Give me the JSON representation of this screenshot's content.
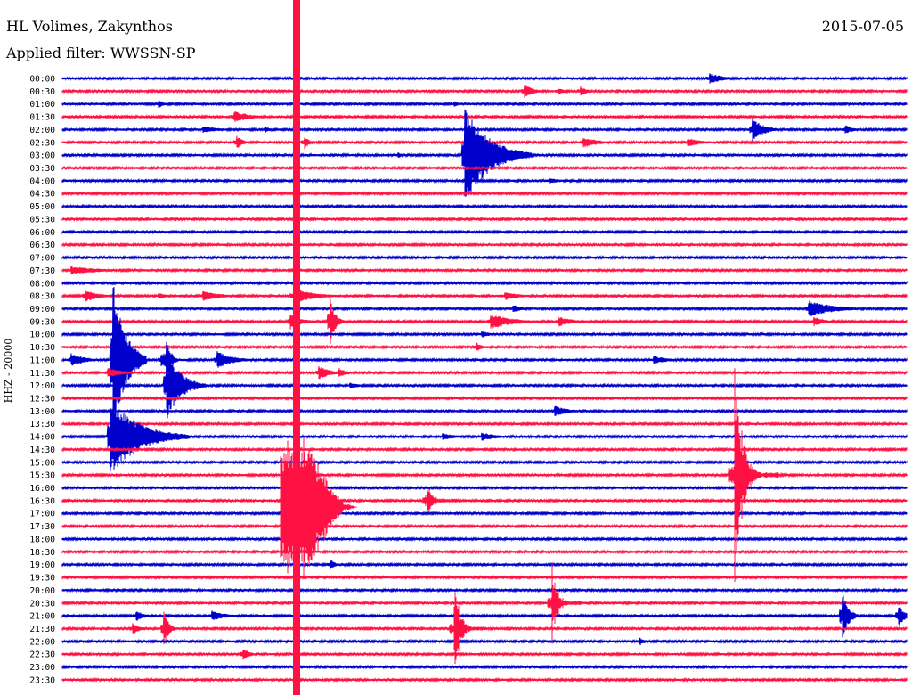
{
  "header": {
    "station": "HL Volimes, Zakynthos",
    "date": "2015-07-05",
    "filter": "Applied filter: WWSSN-SP"
  },
  "colors": {
    "trace_a": "#0000cc",
    "trace_b": "#ff1144",
    "background": "#ffffff",
    "text": "#000000"
  },
  "chart_data": {
    "type": "line",
    "ylabel": "HHZ - 20000",
    "row_labels": [
      "00:00",
      "00:30",
      "01:00",
      "01:30",
      "02:00",
      "02:30",
      "03:00",
      "03:30",
      "04:00",
      "04:30",
      "05:00",
      "05:30",
      "06:00",
      "06:30",
      "07:00",
      "07:30",
      "08:00",
      "08:30",
      "09:00",
      "09:30",
      "10:00",
      "10:30",
      "11:00",
      "11:30",
      "12:00",
      "12:30",
      "13:00",
      "13:30",
      "14:00",
      "14:30",
      "15:00",
      "15:30",
      "16:00",
      "16:30",
      "17:00",
      "17:30",
      "18:00",
      "18:30",
      "19:00",
      "19:30",
      "20:00",
      "20:30",
      "21:00",
      "21:30",
      "22:00",
      "22:30",
      "23:00",
      "23:30"
    ],
    "row_span_minutes": 30,
    "grid": false,
    "legend": "none",
    "series": [
      {
        "values": [
          {
            "row": 0,
            "minute": 23,
            "amp": 6,
            "dur": 1.5
          },
          {
            "row": 1,
            "minute": 16.4,
            "amp": 10,
            "dur": 0.8
          },
          {
            "row": 1,
            "minute": 17.6,
            "amp": 5,
            "dur": 0.6
          },
          {
            "row": 1,
            "minute": 18.4,
            "amp": 6,
            "dur": 0.7
          },
          {
            "row": 2,
            "minute": 3.4,
            "amp": 5,
            "dur": 0.6
          },
          {
            "row": 2,
            "minute": 13.9,
            "amp": 4,
            "dur": 0.5
          },
          {
            "row": 3,
            "minute": 6.1,
            "amp": 7,
            "dur": 1.6
          },
          {
            "row": 4,
            "minute": 5,
            "amp": 4,
            "dur": 1.8
          },
          {
            "row": 4,
            "minute": 7.2,
            "amp": 4,
            "dur": 0.6
          },
          {
            "row": 4,
            "minute": 24.5,
            "amp": 14,
            "dur": 1.2
          },
          {
            "row": 4,
            "minute": 27.8,
            "amp": 6,
            "dur": 0.8
          },
          {
            "row": 5,
            "minute": 6.2,
            "amp": 8,
            "dur": 0.6
          },
          {
            "row": 5,
            "minute": 8.6,
            "amp": 8,
            "dur": 0.5
          },
          {
            "row": 5,
            "minute": 18.5,
            "amp": 6,
            "dur": 1.6
          },
          {
            "row": 5,
            "minute": 22.2,
            "amp": 5,
            "dur": 1.6
          },
          {
            "row": 6,
            "minute": 11.9,
            "amp": 4,
            "dur": 0.5
          },
          {
            "row": 6,
            "minute": 14.3,
            "amp": 55,
            "dur": 2.4
          },
          {
            "row": 8,
            "minute": 17.3,
            "amp": 4,
            "dur": 0.9
          },
          {
            "row": 15,
            "minute": 0.3,
            "amp": 5,
            "dur": 3
          },
          {
            "row": 17,
            "minute": 0.8,
            "amp": 8,
            "dur": 1.3
          },
          {
            "row": 17,
            "minute": 3.4,
            "amp": 4,
            "dur": 1
          },
          {
            "row": 17,
            "minute": 5,
            "amp": 6,
            "dur": 1.8
          },
          {
            "row": 17,
            "minute": 8.2,
            "amp": 10,
            "dur": 2
          },
          {
            "row": 17,
            "minute": 15.7,
            "amp": 5,
            "dur": 1.6
          },
          {
            "row": 18,
            "minute": 16,
            "amp": 5,
            "dur": 0.9
          },
          {
            "row": 18,
            "minute": 26.5,
            "amp": 10,
            "dur": 2.5
          },
          {
            "row": 19,
            "minute": 8.1,
            "amp": 9,
            "dur": 1.1
          },
          {
            "row": 19,
            "minute": 9.5,
            "amp": 30,
            "dur": 0.5
          },
          {
            "row": 19,
            "minute": 15.2,
            "amp": 9,
            "dur": 2.3
          },
          {
            "row": 19,
            "minute": 17.6,
            "amp": 6,
            "dur": 1.5
          },
          {
            "row": 19,
            "minute": 26.7,
            "amp": 6,
            "dur": 1
          },
          {
            "row": 20,
            "minute": 14.9,
            "amp": 4,
            "dur": 1
          },
          {
            "row": 21,
            "minute": 14.7,
            "amp": 6,
            "dur": 0.6
          },
          {
            "row": 22,
            "minute": 0.3,
            "amp": 8,
            "dur": 1.4
          },
          {
            "row": 22,
            "minute": 1.8,
            "amp": 90,
            "dur": 1.2
          },
          {
            "row": 22,
            "minute": 3.5,
            "amp": 8,
            "dur": 0.8
          },
          {
            "row": 22,
            "minute": 3.7,
            "amp": 30,
            "dur": 0.4
          },
          {
            "row": 22,
            "minute": 5.5,
            "amp": 10,
            "dur": 1.6
          },
          {
            "row": 22,
            "minute": 21,
            "amp": 5,
            "dur": 1.5
          },
          {
            "row": 23,
            "minute": 1.6,
            "amp": 6,
            "dur": 1.5
          },
          {
            "row": 23,
            "minute": 9.1,
            "amp": 8,
            "dur": 1.2
          },
          {
            "row": 23,
            "minute": 9.8,
            "amp": 6,
            "dur": 0.8
          },
          {
            "row": 24,
            "minute": 3.7,
            "amp": 40,
            "dur": 1.4
          },
          {
            "row": 24,
            "minute": 10.2,
            "amp": 4,
            "dur": 1
          },
          {
            "row": 26,
            "minute": 17.5,
            "amp": 6,
            "dur": 1.5
          },
          {
            "row": 28,
            "minute": 1.7,
            "amp": 45,
            "dur": 2.8
          },
          {
            "row": 28,
            "minute": 13.5,
            "amp": 4,
            "dur": 1.5
          },
          {
            "row": 28,
            "minute": 14.9,
            "amp": 5,
            "dur": 1.5
          },
          {
            "row": 35,
            "minute": 8.6,
            "amp": 8,
            "dur": 0.7
          },
          {
            "row": 38,
            "minute": 9.5,
            "amp": 7,
            "dur": 0.5
          },
          {
            "row": 42,
            "minute": 2.6,
            "amp": 7,
            "dur": 0.8
          },
          {
            "row": 42,
            "minute": 5.3,
            "amp": 6,
            "dur": 1.4
          },
          {
            "row": 42,
            "minute": 27.7,
            "amp": 30,
            "dur": 0.6
          },
          {
            "row": 42,
            "minute": 29.7,
            "amp": 14,
            "dur": 0.6
          },
          {
            "row": 43,
            "minute": 2.5,
            "amp": 7,
            "dur": 0.7
          },
          {
            "row": 43,
            "minute": 3.6,
            "amp": 20,
            "dur": 0.5
          },
          {
            "row": 44,
            "minute": 20.5,
            "amp": 5,
            "dur": 0.6
          },
          {
            "row": 45,
            "minute": 6.4,
            "amp": 9,
            "dur": 0.6
          }
        ]
      }
    ]
  }
}
